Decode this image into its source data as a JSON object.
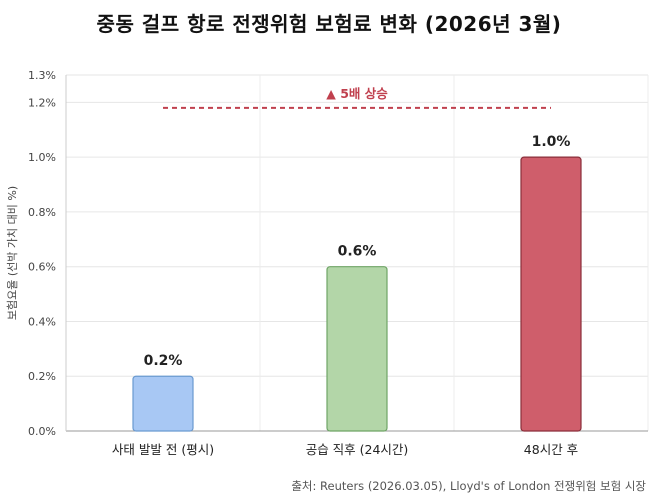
{
  "chart_data": {
    "type": "bar",
    "title": "중동 걸프 항로 전쟁위험 보험료 변화 (2026년 3월)",
    "categories": [
      "사태 발발 전 (평시)",
      "공습 직후 (24시간)",
      "48시간 후"
    ],
    "values": [
      0.2,
      0.6,
      1.0
    ],
    "data_labels": [
      "0.2%",
      "0.6%",
      "1.0%"
    ],
    "ylabel": "보험요율 (선박 가치 대비 %)",
    "ylim": [
      0,
      1.3
    ],
    "yticks": [
      0.0,
      0.2,
      0.4,
      0.6,
      0.8,
      1.0,
      1.2,
      1.3
    ],
    "ytick_labels": [
      "0.0%",
      "0.2%",
      "0.4%",
      "0.6%",
      "0.8%",
      "1.0%",
      "1.2%",
      "1.3%"
    ],
    "grid": true,
    "bar_colors": [
      "#a8c8f4",
      "#b3d6a8",
      "#cf5e6b"
    ],
    "bar_edge_colors": [
      "#6a9ad0",
      "#6fa566",
      "#8a2e3a"
    ],
    "annotation": {
      "text": "▲ 5배 상승",
      "reference_value": 1.18,
      "color": "#c0404e"
    },
    "source": "출처: Reuters (2026.03.05), Lloyd's of London 전쟁위험 보험 시장"
  }
}
